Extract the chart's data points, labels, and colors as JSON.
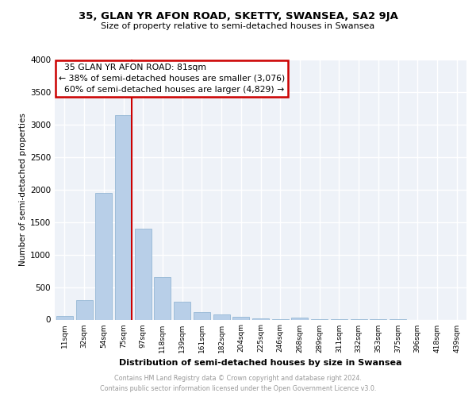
{
  "title_top": "35, GLAN YR AFON ROAD, SKETTY, SWANSEA, SA2 9JA",
  "subtitle_top": "Size of property relative to semi-detached houses in Swansea",
  "xlabel": "Distribution of semi-detached houses by size in Swansea",
  "ylabel": "Number of semi-detached properties",
  "categories": [
    "11sqm",
    "32sqm",
    "54sqm",
    "75sqm",
    "97sqm",
    "118sqm",
    "139sqm",
    "161sqm",
    "182sqm",
    "204sqm",
    "225sqm",
    "246sqm",
    "268sqm",
    "289sqm",
    "311sqm",
    "332sqm",
    "353sqm",
    "375sqm",
    "396sqm",
    "418sqm",
    "439sqm"
  ],
  "values": [
    50,
    300,
    1950,
    3150,
    1400,
    650,
    280,
    120,
    80,
    40,
    20,
    10,
    30,
    5,
    2,
    1,
    1,
    1,
    0,
    0,
    0
  ],
  "bar_color": "#b8cfe8",
  "bar_edge_color": "#8ab0d0",
  "property_label": "35 GLAN YR AFON ROAD: 81sqm",
  "pct_smaller": 38,
  "n_smaller": 3076,
  "pct_larger": 60,
  "n_larger": 4829,
  "redline_color": "#cc0000",
  "ylim": [
    0,
    4000
  ],
  "yticks": [
    0,
    500,
    1000,
    1500,
    2000,
    2500,
    3000,
    3500,
    4000
  ],
  "footer_line1": "Contains HM Land Registry data © Crown copyright and database right 2024.",
  "footer_line2": "Contains public sector information licensed under the Open Government Licence v3.0.",
  "plot_bg_color": "#eef2f8",
  "grid_color": "#ffffff",
  "red_line_x": 3.43
}
